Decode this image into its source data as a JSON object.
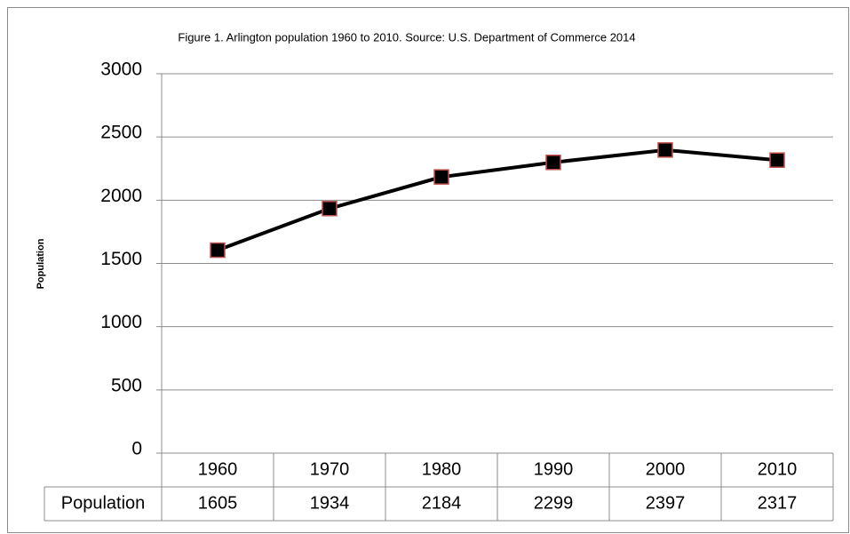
{
  "chart_data": {
    "type": "line",
    "title": "Figure 1. Arlington population 1960 to 2010. Source: U.S. Department of Commerce 2014",
    "y_label": "Population",
    "categories": [
      "1960",
      "1970",
      "1980",
      "1990",
      "2000",
      "2010"
    ],
    "series": [
      {
        "name": "Population",
        "color": "#000000",
        "marker_edge_color": "#c0504d",
        "values": [
          1605,
          1934,
          2184,
          2299,
          2397,
          2317
        ]
      }
    ],
    "ylim": [
      0,
      3000
    ],
    "yticks": [
      0,
      500,
      1000,
      1500,
      2000,
      2500,
      3000
    ],
    "grid": true
  }
}
